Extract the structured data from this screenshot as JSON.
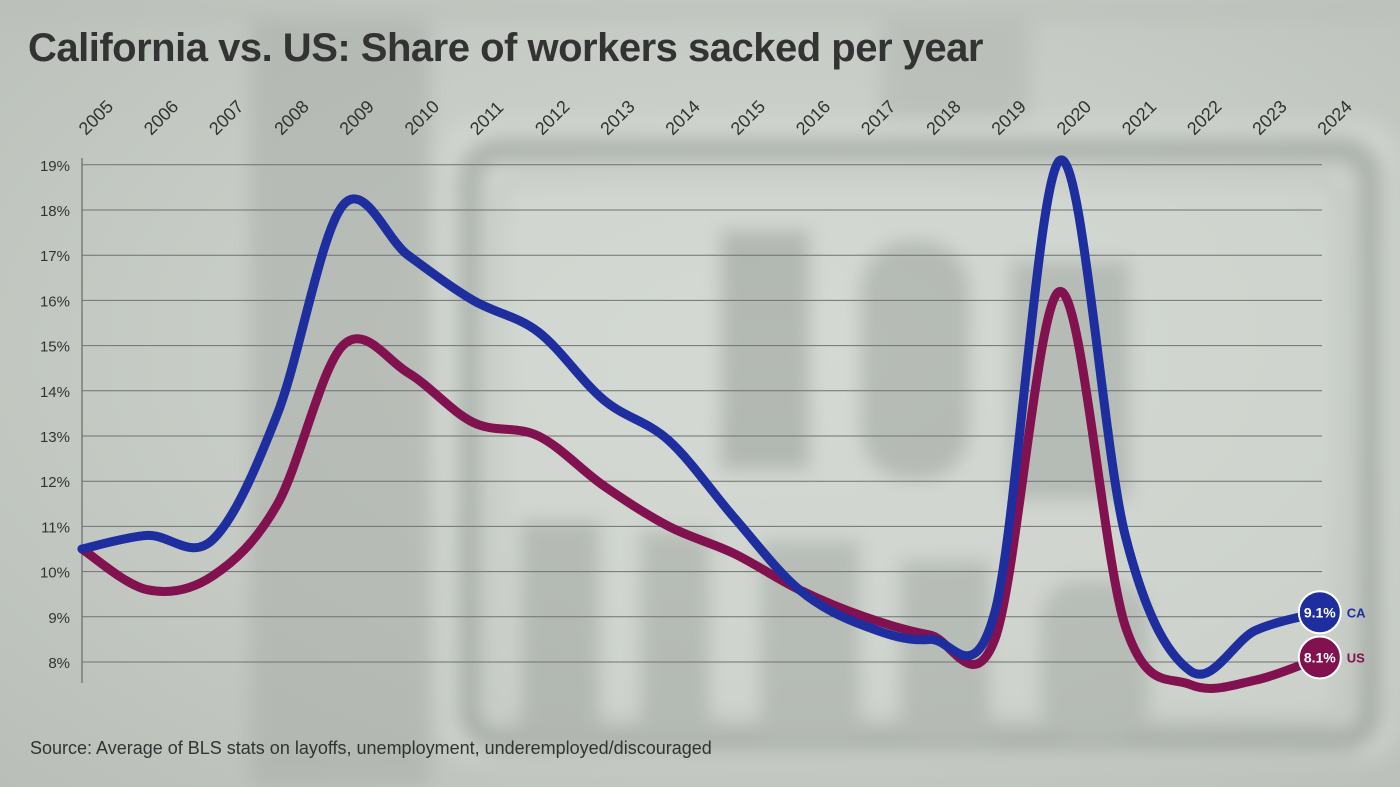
{
  "title": "California vs. US: Share of workers sacked per year",
  "source": "Source: Average of BLS stats on layoffs, unemployment, underemployed/discouraged",
  "chart_data": {
    "type": "line",
    "title": "California vs. US: Share of workers sacked per year",
    "x": [
      2005,
      2006,
      2007,
      2008,
      2009,
      2010,
      2011,
      2012,
      2013,
      2014,
      2015,
      2016,
      2017,
      2018,
      2019,
      2020,
      2021,
      2022,
      2023,
      2024
    ],
    "x_tick_labels": [
      "2005",
      "2006",
      "2007",
      "2008",
      "2009",
      "2010",
      "2011",
      "2012",
      "2013",
      "2014",
      "2015",
      "2016",
      "2017",
      "2018",
      "2019",
      "2020",
      "2021",
      "2022",
      "2023",
      "2024"
    ],
    "x_axis_position": "top",
    "y_ticks": [
      8,
      9,
      10,
      11,
      12,
      13,
      14,
      15,
      16,
      17,
      18,
      19
    ],
    "y_tick_labels": [
      "8%",
      "9%",
      "10%",
      "11%",
      "12%",
      "13%",
      "14%",
      "15%",
      "16%",
      "17%",
      "18%",
      "19%"
    ],
    "ylim": [
      7.6,
      19.2
    ],
    "grid": true,
    "series": [
      {
        "name": "CA",
        "color": "#1f2e9e",
        "values": [
          10.5,
          10.8,
          10.7,
          13.5,
          18.1,
          17.0,
          16.0,
          15.3,
          13.8,
          12.9,
          11.2,
          9.6,
          8.8,
          8.5,
          9.1,
          19.1,
          10.8,
          7.8,
          8.7,
          9.1
        ],
        "end_label": "9.1%",
        "tag": "CA"
      },
      {
        "name": "US",
        "color": "#82114f",
        "values": [
          10.5,
          9.6,
          9.9,
          11.5,
          15.0,
          14.4,
          13.3,
          13.0,
          11.9,
          11.0,
          10.4,
          9.6,
          9.0,
          8.6,
          8.5,
          16.2,
          8.8,
          7.5,
          7.6,
          8.1
        ],
        "end_label": "8.1%",
        "tag": "US"
      }
    ],
    "legend": "none"
  }
}
